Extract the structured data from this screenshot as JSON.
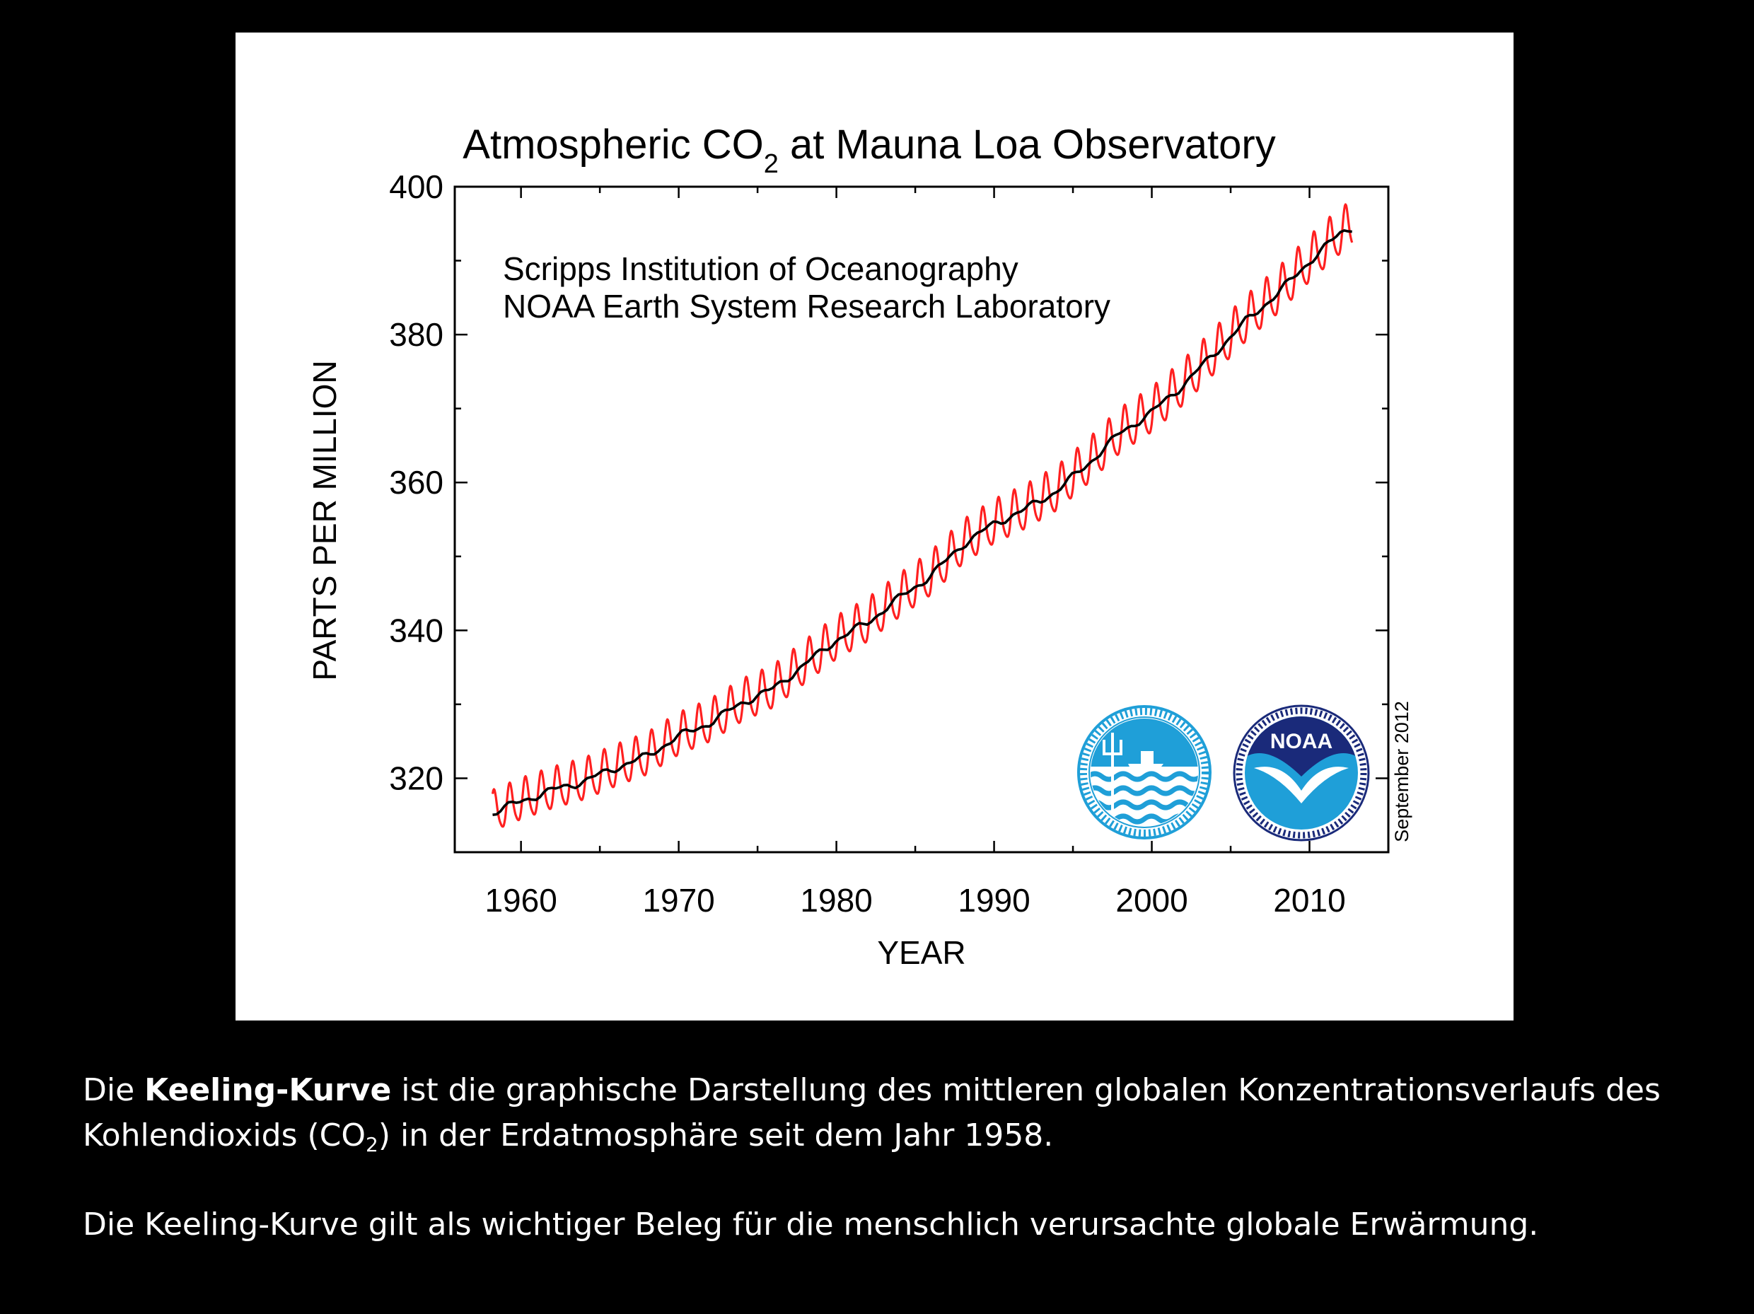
{
  "chart_data": {
    "type": "line",
    "title_main": "Atmospheric CO",
    "title_sub": "2",
    "title_rest": " at Mauna Loa Observatory",
    "xlabel": "YEAR",
    "ylabel": "PARTS PER MILLION",
    "xlim": [
      1955.8,
      2015
    ],
    "ylim": [
      310,
      400
    ],
    "x_ticks": [
      1960,
      1970,
      1980,
      1990,
      2000,
      2010
    ],
    "y_ticks": [
      320,
      340,
      360,
      380,
      400
    ],
    "annotations": [
      "Scripps Institution of Oceanography",
      "NOAA Earth System Research Laboratory"
    ],
    "date_note": "September 2012",
    "grid": false,
    "logos": [
      "scripps-ucsd-seal",
      "noaa-seal"
    ],
    "series": [
      {
        "role": "monthly",
        "color": "#ff2020",
        "seasonal_amplitude": 3.2,
        "x_start": 1958.2,
        "x_end": 2012.7
      },
      {
        "role": "trend",
        "color": "#000000",
        "x": [
          1958.2,
          1960,
          1962,
          1964,
          1966,
          1968,
          1970,
          1972,
          1974,
          1976,
          1978,
          1980,
          1982,
          1984,
          1986,
          1988,
          1990,
          1992,
          1994,
          1996,
          1998,
          2000,
          2002,
          2004,
          2006,
          2008,
          2010,
          2012,
          2012.7
        ],
        "y": [
          315.3,
          316.9,
          318.4,
          319.6,
          321.4,
          323.0,
          325.7,
          327.5,
          330.2,
          332.1,
          335.4,
          338.7,
          341.1,
          344.4,
          347.4,
          351.6,
          354.4,
          356.4,
          358.9,
          362.6,
          366.7,
          369.5,
          373.2,
          377.5,
          381.9,
          385.6,
          389.9,
          393.8,
          394.5
        ]
      }
    ]
  },
  "caption": {
    "p1_pre": "Die ",
    "p1_bold": "Keeling-Kurve",
    "p1_mid": " ist die graphische Darstellung des mittleren globalen Konzentrationsverlaufs des Kohlendioxids (CO",
    "p1_sub": "2",
    "p1_post": ") in der Erdatmosphäre seit dem Jahr 1958.",
    "p2": "Die Keeling-Kurve gilt als wichtiger Beleg für die menschlich verursachte globale Erwärmung."
  },
  "colors": {
    "background": "#000000",
    "panel": "#ffffff",
    "monthly_line": "#ff2020",
    "trend_line": "#000000",
    "logo_blue": "#1f9fd8",
    "noaa_navy": "#1a2a7a"
  }
}
